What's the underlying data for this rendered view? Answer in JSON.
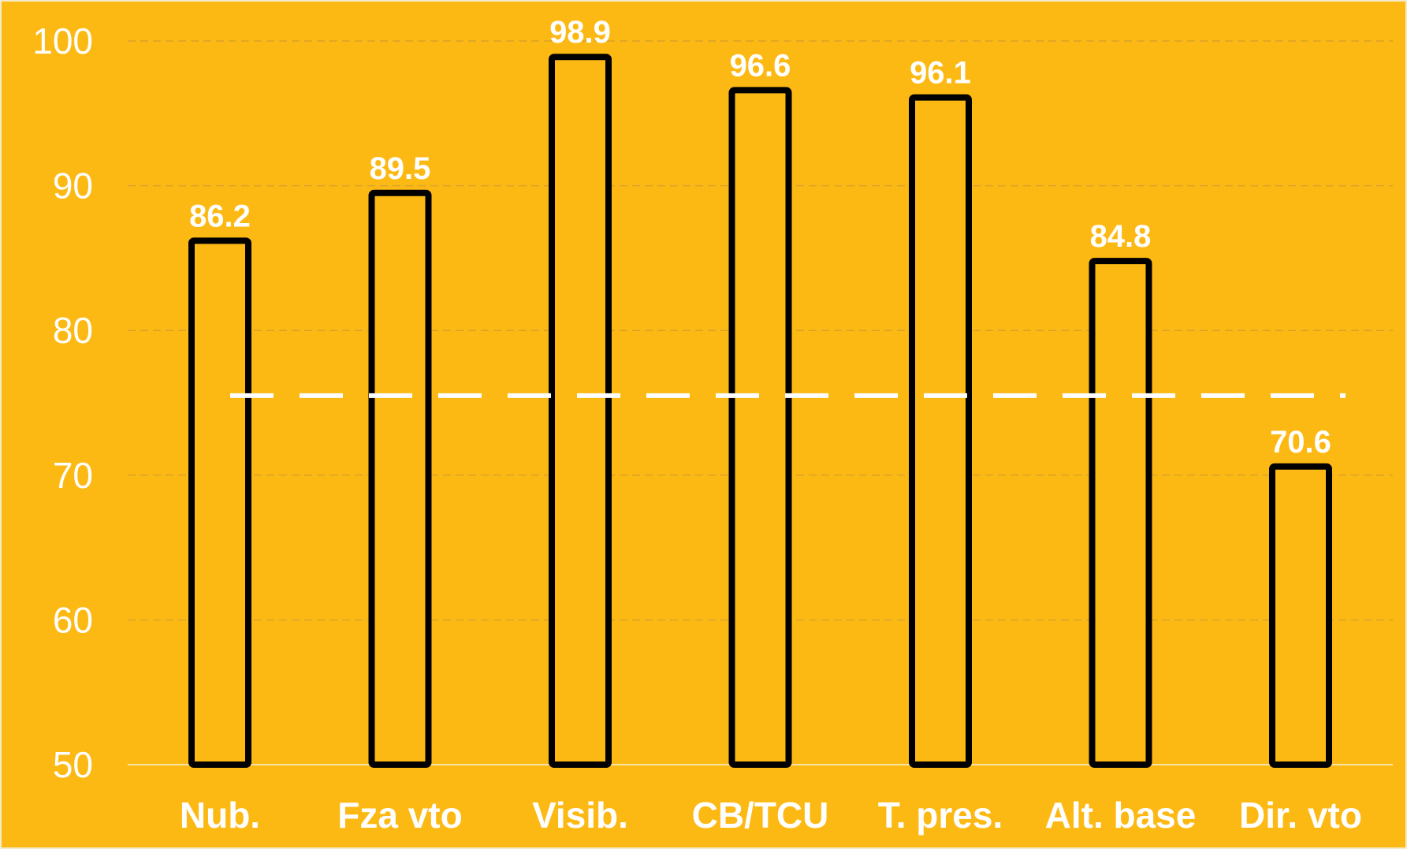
{
  "colors": {
    "background": "#FDB913",
    "bar_fill": "#FDB913",
    "bar_stroke": "#000000",
    "text": "#FFFFFF",
    "reference_line": "#FFFFFF",
    "grid": "#D9A22B"
  },
  "chart_data": {
    "type": "bar",
    "categories": [
      "Nub.",
      "Fza vto",
      "Visib.",
      "CB/TCU",
      "T. pres.",
      "Alt. base",
      "Dir. vto"
    ],
    "values": [
      86.2,
      89.5,
      98.9,
      96.6,
      96.1,
      84.8,
      70.6
    ],
    "value_labels": [
      "86.2",
      "89.5",
      "98.9",
      "96.6",
      "96.1",
      "84.8",
      "70.6"
    ],
    "title": "",
    "xlabel": "",
    "ylabel": "",
    "ylim": [
      50,
      100
    ],
    "yticks": [
      50,
      60,
      70,
      80,
      90,
      100
    ],
    "reference_line": 75.5,
    "grid": true,
    "legend": "none"
  }
}
